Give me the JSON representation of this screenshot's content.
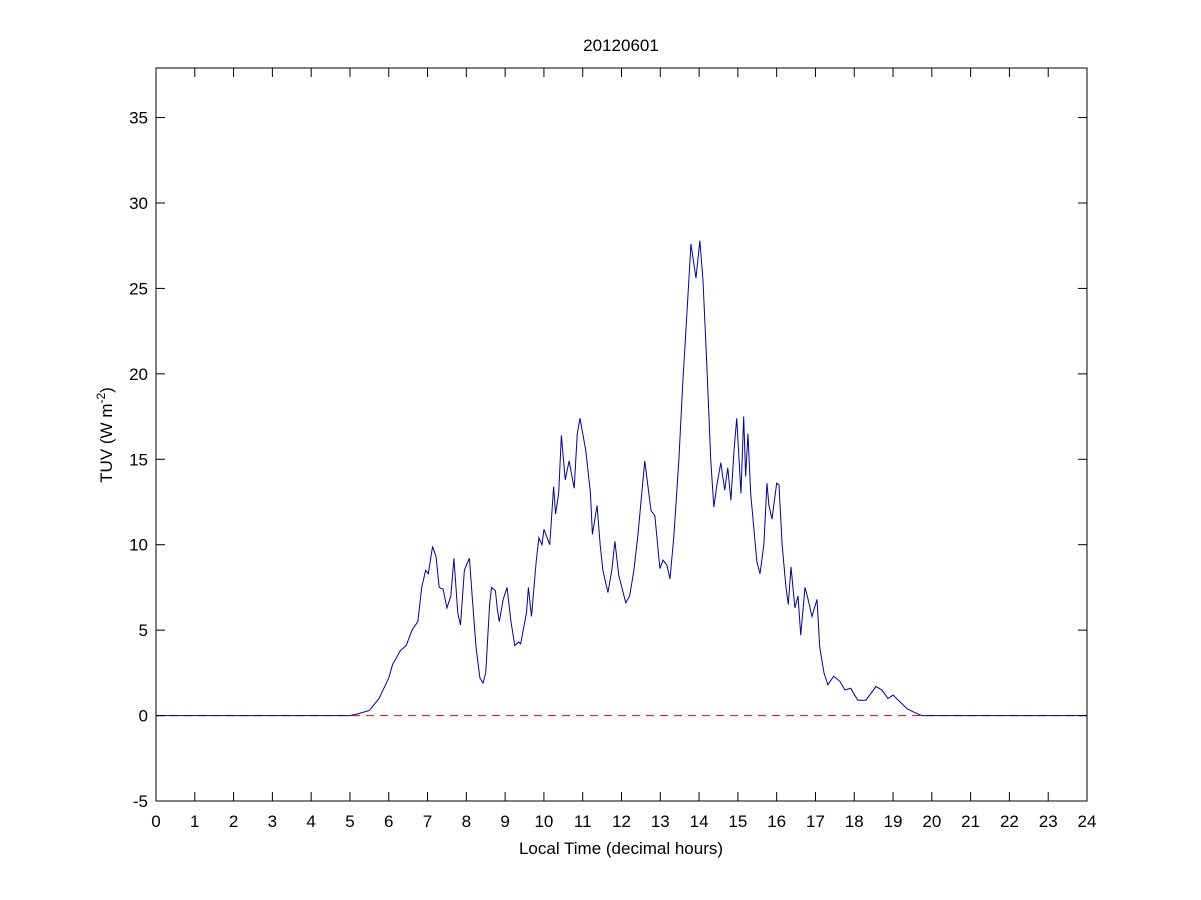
{
  "chart_data": {
    "type": "line",
    "title": "20120601",
    "xlabel": "Local Time (decimal hours)",
    "ylabel": {
      "text": "TUV (W m",
      "superscript": "-2",
      "suffix": ")"
    },
    "xlim": [
      0,
      24
    ],
    "ylim": [
      -5,
      37.9
    ],
    "xticks": [
      0,
      1,
      2,
      3,
      4,
      5,
      6,
      7,
      8,
      9,
      10,
      11,
      12,
      13,
      14,
      15,
      16,
      17,
      18,
      19,
      20,
      21,
      22,
      23,
      24
    ],
    "yticks": [
      -5,
      0,
      5,
      10,
      15,
      20,
      25,
      30,
      35
    ],
    "reference_line": {
      "value": 0,
      "color": "#ff0000",
      "style": "dashed"
    },
    "series": [
      {
        "color": "#0000aa",
        "x": [
          0,
          5,
          5.2,
          5.5,
          5.75,
          6,
          6.1,
          6.3,
          6.45,
          6.6,
          6.75,
          6.85,
          6.95,
          7.02,
          7.13,
          7.22,
          7.3,
          7.4,
          7.5,
          7.6,
          7.68,
          7.78,
          7.85,
          7.95,
          8,
          8.08,
          8.15,
          8.25,
          8.35,
          8.43,
          8.5,
          8.6,
          8.65,
          8.75,
          8.8,
          8.85,
          8.95,
          9.05,
          9.15,
          9.25,
          9.35,
          9.4,
          9.55,
          9.6,
          9.68,
          9.8,
          9.87,
          9.95,
          10,
          10.15,
          10.25,
          10.3,
          10.38,
          10.45,
          10.55,
          10.65,
          10.78,
          10.86,
          10.93,
          11.08,
          11.2,
          11.25,
          11.37,
          11.45,
          11.52,
          11.65,
          11.75,
          11.83,
          11.93,
          12.11,
          12.21,
          12.32,
          12.42,
          12.6,
          12.76,
          12.86,
          12.99,
          13.07,
          13.17,
          13.25,
          13.35,
          13.48,
          13.58,
          13.66,
          13.79,
          13.92,
          14.02,
          14.1,
          14.2,
          14.3,
          14.38,
          14.46,
          14.56,
          14.66,
          14.74,
          14.82,
          14.9,
          14.97,
          15.08,
          15.15,
          15.2,
          15.26,
          15.33,
          15.41,
          15.49,
          15.57,
          15.67,
          15.75,
          15.8,
          15.88,
          16,
          16.06,
          16.14,
          16.24,
          16.3,
          16.37,
          16.47,
          16.55,
          16.62,
          16.73,
          16.8,
          16.91,
          17.04,
          17.11,
          17.22,
          17.32,
          17.47,
          17.63,
          17.76,
          17.91,
          18.09,
          18.3,
          18.56,
          18.71,
          18.87,
          19,
          19.18,
          19.36,
          19.54,
          19.74,
          24
        ],
        "values": [
          0,
          0,
          0.1,
          0.3,
          1.0,
          2.2,
          3.0,
          3.8,
          4.1,
          5.0,
          5.5,
          7.5,
          8.5,
          8.3,
          9.9,
          9.3,
          7.5,
          7.4,
          6.3,
          7.0,
          9.2,
          6.0,
          5.3,
          8.5,
          8.8,
          9.2,
          7.0,
          4.0,
          2.2,
          1.9,
          2.5,
          6.5,
          7.5,
          7.3,
          6.2,
          5.5,
          6.8,
          7.5,
          5.5,
          4.1,
          4.3,
          4.2,
          6.0,
          7.5,
          5.8,
          9.0,
          10.4,
          10.0,
          10.9,
          10.0,
          13.4,
          11.8,
          13.0,
          16.4,
          13.8,
          14.9,
          13.3,
          16.5,
          17.4,
          15.5,
          13.0,
          10.6,
          12.3,
          10.0,
          8.5,
          7.2,
          8.5,
          10.2,
          8.2,
          6.6,
          7.0,
          8.5,
          10.5,
          14.9,
          12.0,
          11.7,
          8.6,
          9.1,
          8.8,
          8.0,
          10.5,
          15.0,
          19.5,
          22.5,
          27.6,
          25.6,
          27.8,
          25.5,
          20.5,
          15.0,
          12.2,
          13.5,
          14.8,
          13.2,
          14.5,
          12.6,
          15.5,
          17.4,
          13.0,
          17.5,
          14.0,
          16.5,
          13.0,
          11.0,
          9.0,
          8.3,
          10.0,
          13.6,
          12.3,
          11.5,
          13.6,
          13.5,
          10.0,
          7.5,
          6.5,
          8.7,
          6.3,
          7.0,
          4.7,
          7.5,
          6.9,
          5.8,
          6.8,
          4.0,
          2.5,
          1.8,
          2.3,
          2.0,
          1.5,
          1.6,
          0.9,
          0.9,
          1.7,
          1.5,
          1.0,
          1.2,
          0.8,
          0.4,
          0.2,
          0,
          0
        ]
      }
    ]
  }
}
